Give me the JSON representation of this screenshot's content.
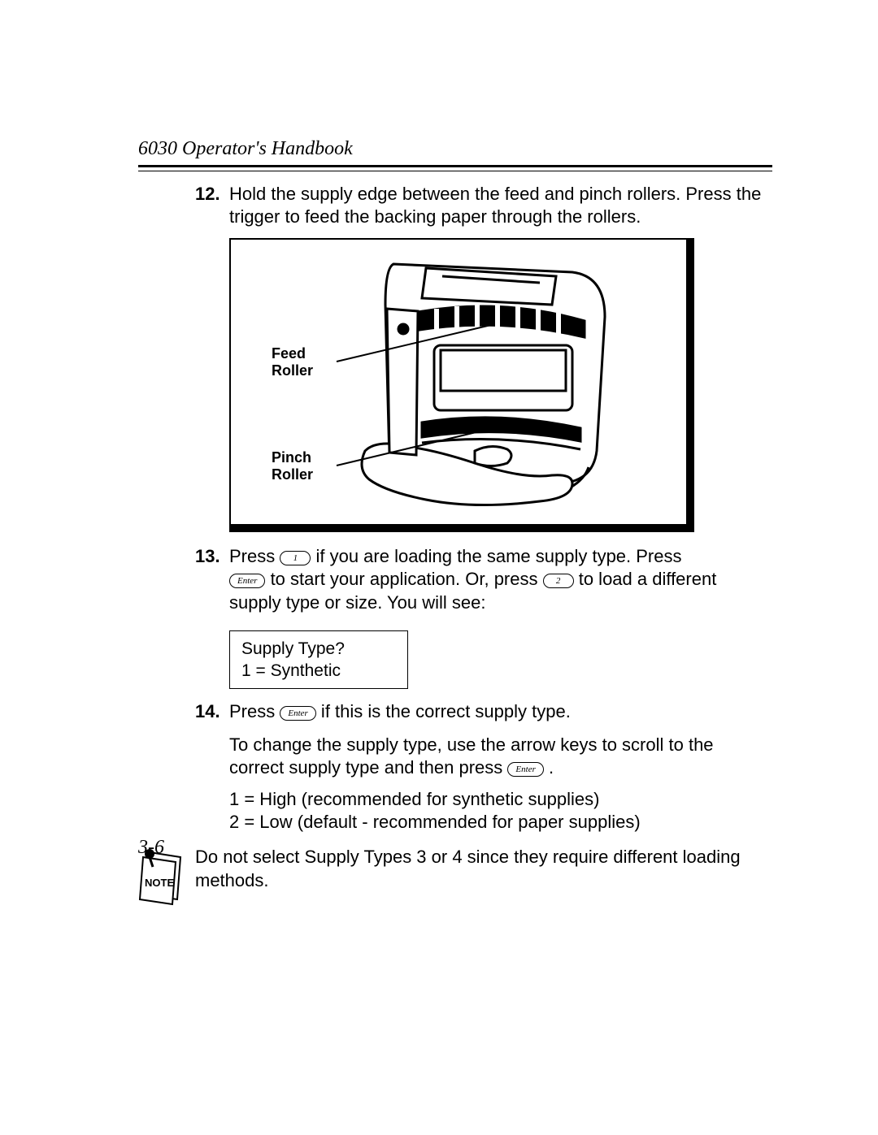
{
  "header": {
    "title": "6030 Operator's Handbook"
  },
  "steps": {
    "s12": {
      "num": "12.",
      "text": "Hold the supply edge between the feed and pinch rollers. Press the trigger to feed the backing paper through the rollers."
    },
    "figure": {
      "label_feed": "Feed\nRoller",
      "label_pinch": "Pinch\nRoller"
    },
    "s13": {
      "num": "13.",
      "t1": "Press ",
      "key1": "1",
      "t2": " if you are loading the same supply type.  Press ",
      "key_enter": "Enter",
      "t3": "  to start your application.  Or, press ",
      "key2": "2",
      "t4": " to load a different supply  type or size.  You will see:"
    },
    "lcd": {
      "line1": "Supply Type?",
      "line2": "1 = Synthetic"
    },
    "s14": {
      "num": "14.",
      "t1": "Press ",
      "key_enter": "Enter",
      "t2": " if this is the correct supply type."
    },
    "s14_sub1_a": "To change the supply type, use the arrow keys to scroll to the correct supply type and then press ",
    "s14_sub1_key": "Enter",
    "s14_sub1_b": " .",
    "s14_sub2_l1": "1 = High (recommended for synthetic supplies)",
    "s14_sub2_l2": "2 = Low (default - recommended for paper supplies)",
    "note": {
      "label": "NOTE",
      "text": "Do not select Supply Types 3 or 4 since they require different loading methods."
    }
  },
  "footer": {
    "page": "3-6"
  },
  "colors": {
    "text": "#000000",
    "bg": "#ffffff"
  }
}
